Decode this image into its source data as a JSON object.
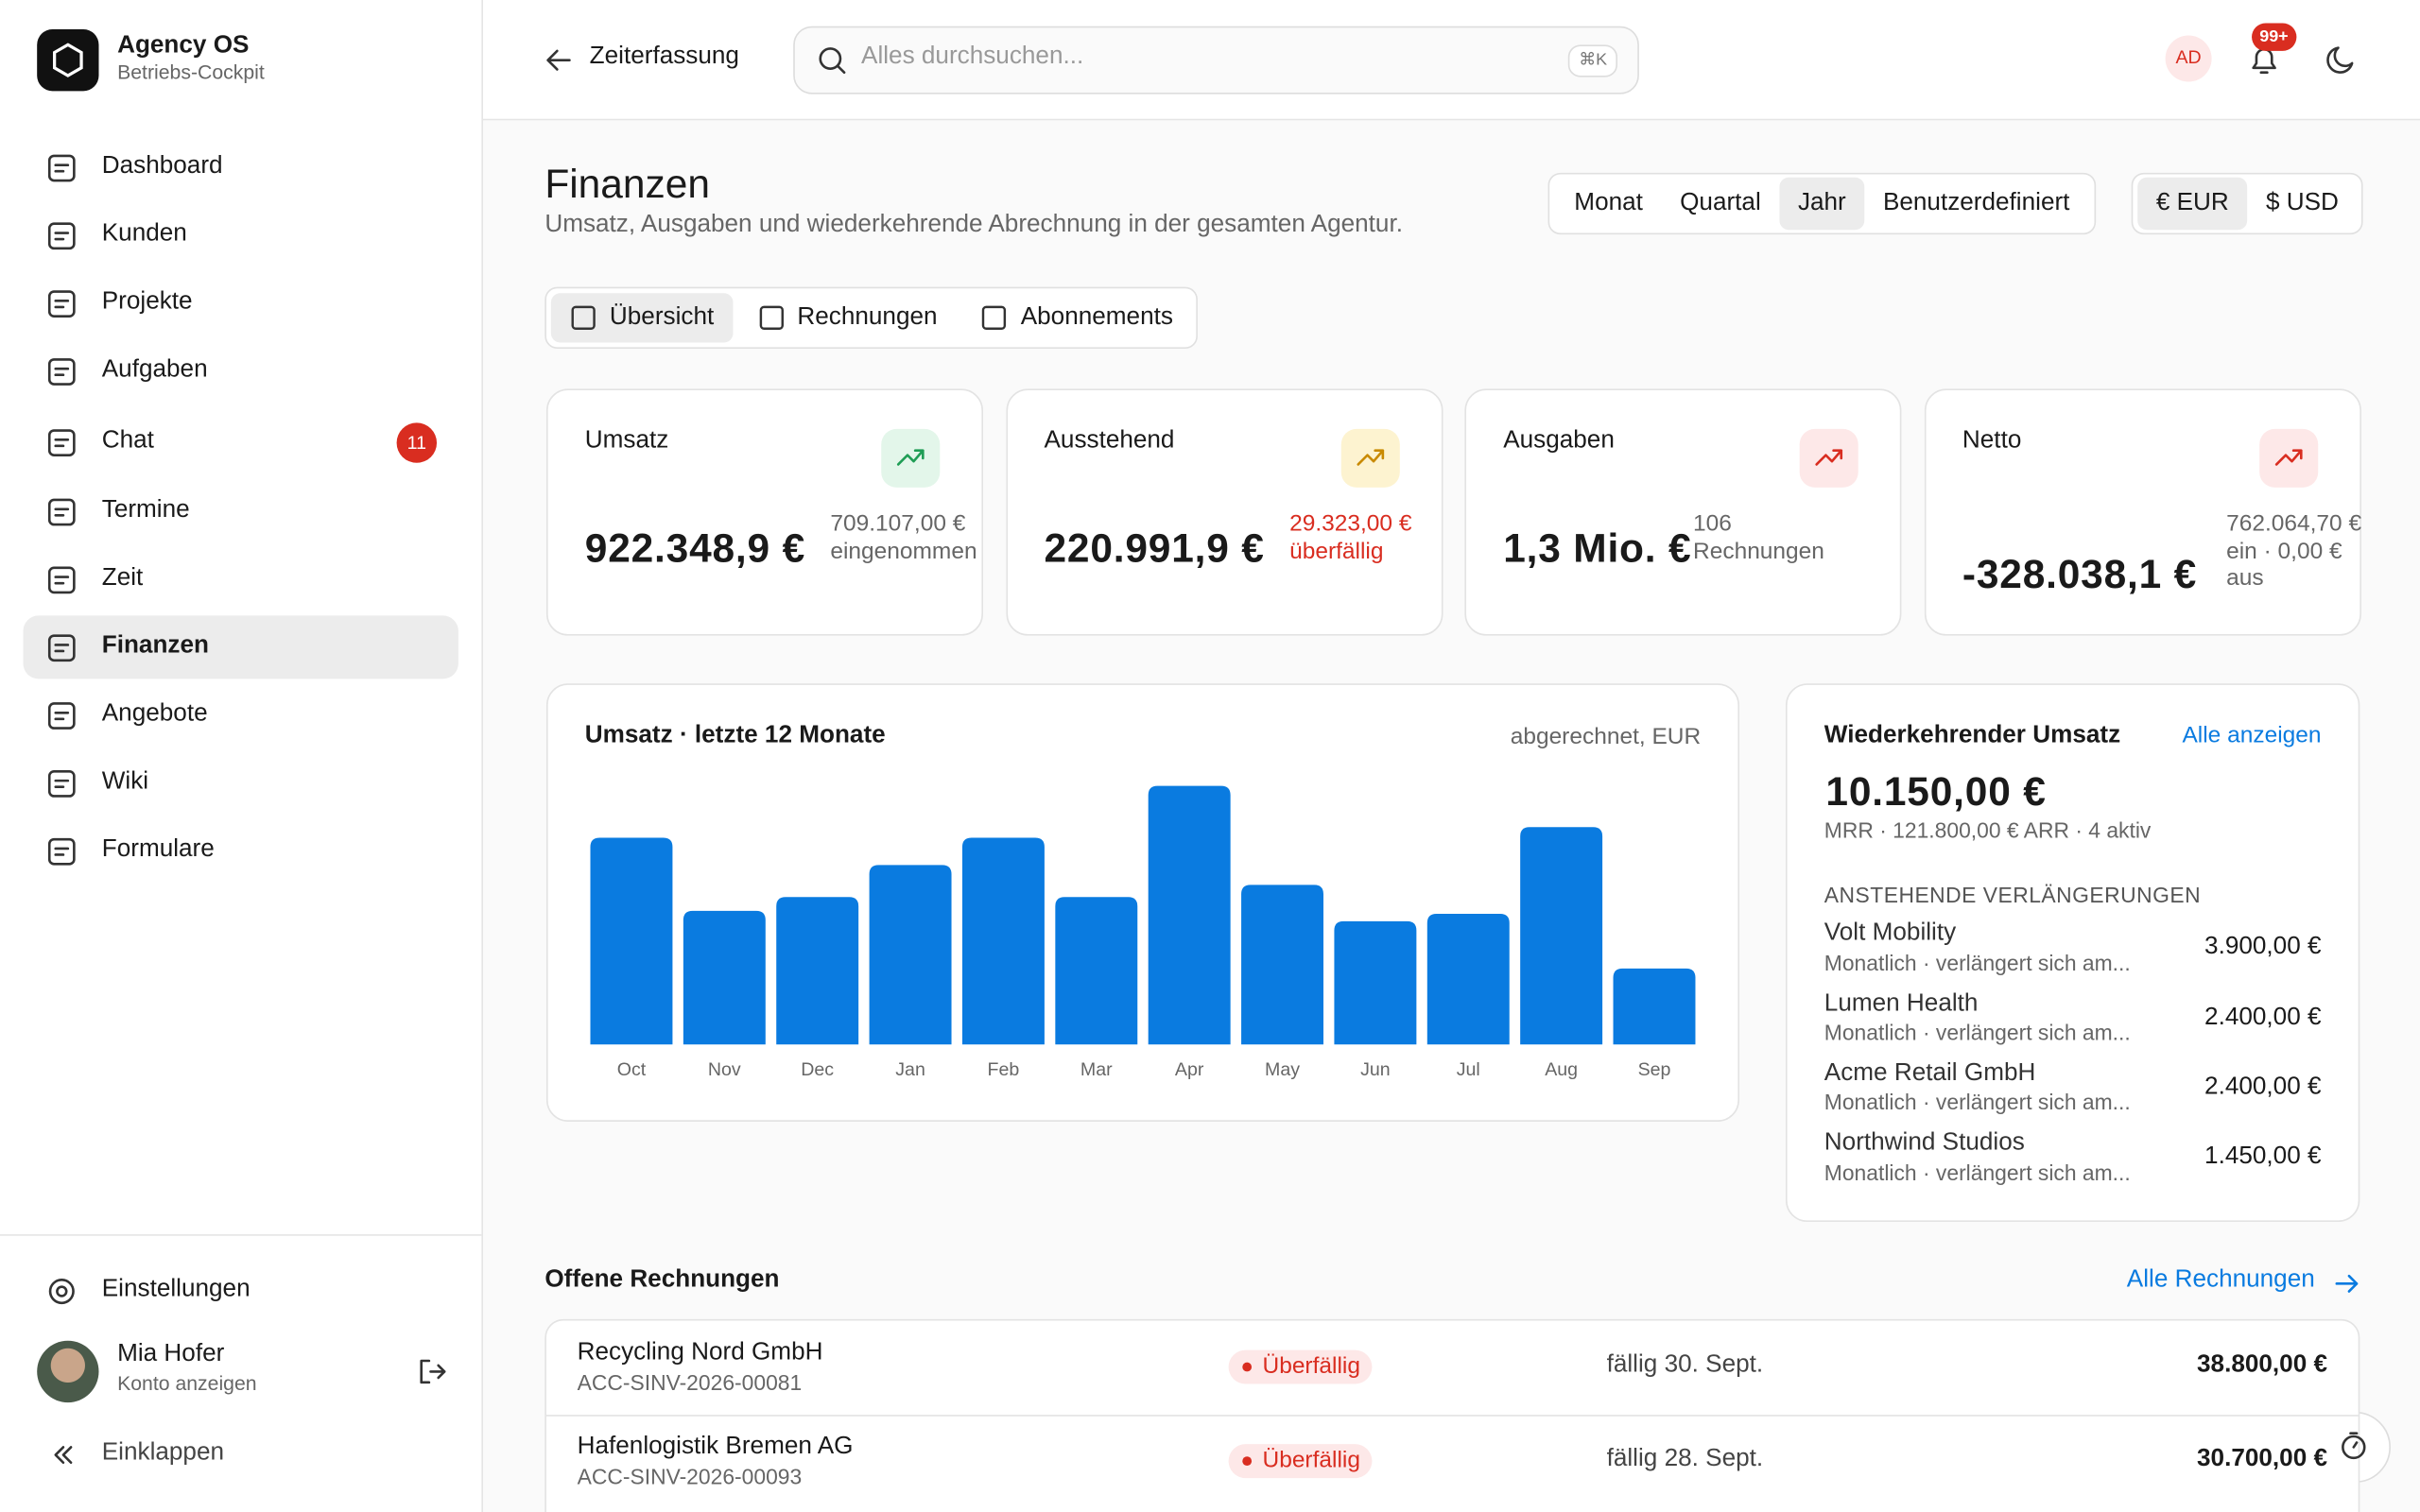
{
  "sidebar": {
    "brand": {
      "name": "Agency OS",
      "subtitle": "Betriebs-Cockpit"
    },
    "nav": [
      {
        "label": "Dashboard"
      },
      {
        "label": "Kunden"
      },
      {
        "label": "Projekte"
      },
      {
        "label": "Aufgaben"
      },
      {
        "label": "Chat",
        "badge": "11"
      },
      {
        "label": "Termine"
      },
      {
        "label": "Zeit"
      },
      {
        "label": "Finanzen",
        "active": true
      },
      {
        "label": "Angebote"
      },
      {
        "label": "Wiki"
      },
      {
        "label": "Formulare"
      }
    ],
    "settings": "Einstellungen",
    "user": {
      "name": "Mia Hofer",
      "subtitle": "Konto anzeigen"
    },
    "collapse": "Einklappen"
  },
  "topbar": {
    "back": "Zeiterfassung",
    "search": "Alles durchsuchen...",
    "shortcut": "⌘K",
    "avatar": "AD",
    "notifications": "99+"
  },
  "header": {
    "title": "Finanzen",
    "subtitle": "Umsatz, Ausgaben und wiederkehrende Abrechnung in der gesamten Agentur.",
    "periods": [
      "Monat",
      "Quartal",
      "Jahr",
      "Benutzerdefiniert"
    ],
    "currencies": [
      "€ EUR",
      "$ USD"
    ]
  },
  "tabs": [
    "Übersicht",
    "Rechnungen",
    "Abonnements"
  ],
  "kpis": [
    {
      "label": "Umsatz",
      "value": "922.348,9 €",
      "note": [
        "709.107,00 €",
        "eingenommen"
      ],
      "tone": "green"
    },
    {
      "label": "Ausstehend",
      "value": "220.991,9 €",
      "note": [
        "29.323,00 €",
        "überfällig"
      ],
      "tone": "amber"
    },
    {
      "label": "Ausgaben",
      "value": "1,3 Mio. €",
      "note": [
        "106",
        "Rechnungen"
      ],
      "tone": "red"
    },
    {
      "label": "Netto",
      "value": "-328.038,1 €",
      "note": [
        "762.064,70 €",
        "ein · 0,00 €",
        "aus"
      ],
      "tone": "red"
    }
  ],
  "revenue_chart": {
    "type": "bar",
    "title": "Umsatz · letzte 12 Monate",
    "subtitle": "abgerechnet, EUR",
    "categories": [
      "Oct",
      "Nov",
      "Dec",
      "Jan",
      "Feb",
      "Mar",
      "Apr",
      "May",
      "Jun",
      "Jul",
      "Aug",
      "Sep"
    ],
    "values": [
      99000,
      64000,
      70600,
      85900,
      99000,
      70600,
      123800,
      76400,
      59000,
      62600,
      104100,
      36400
    ],
    "ylim": [
      0,
      130000
    ],
    "color": "#0a7be0"
  },
  "recurring": {
    "title": "Wiederkehrender Umsatz",
    "link": "Alle anzeigen",
    "amount": "10.150,00 €",
    "summary": "MRR · 121.800,00 € ARR · 4 aktiv",
    "section": "ANSTEHENDE VERLÄNGERUNGEN",
    "items": [
      {
        "name": "Volt Mobility",
        "detail": "Monatlich · verlängert sich am...",
        "amount": "3.900,00 €"
      },
      {
        "name": "Lumen Health",
        "detail": "Monatlich · verlängert sich am...",
        "amount": "2.400,00 €"
      },
      {
        "name": "Acme Retail GmbH",
        "detail": "Monatlich · verlängert sich am...",
        "amount": "2.400,00 €"
      },
      {
        "name": "Northwind Studios",
        "detail": "Monatlich · verlängert sich am...",
        "amount": "1.450,00 €"
      }
    ]
  },
  "invoices": {
    "title": "Offene Rechnungen",
    "link": "Alle Rechnungen",
    "rows": [
      {
        "client": "Recycling Nord GmbH",
        "number": "ACC-SINV-2026-00081",
        "status": "Überfällig",
        "due": "fällig 30. Sept.",
        "amount": "38.800,00 €"
      },
      {
        "client": "Hafenlogistik Bremen AG",
        "number": "ACC-SINV-2026-00093",
        "status": "Überfällig",
        "due": "fällig 28. Sept.",
        "amount": "30.700,00 €"
      }
    ]
  }
}
